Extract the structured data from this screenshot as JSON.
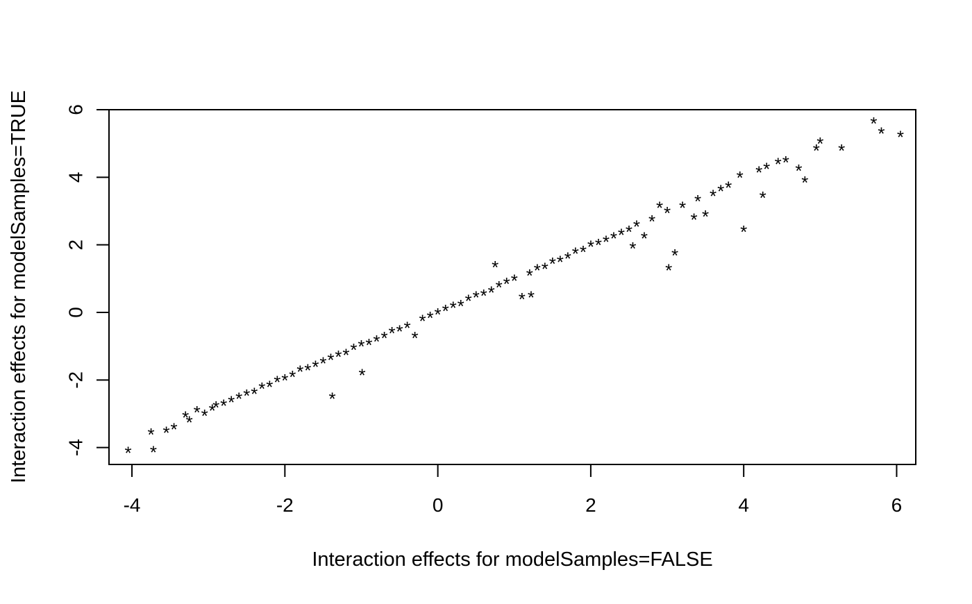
{
  "chart_data": {
    "type": "scatter",
    "title": "",
    "xlabel": "Interaction effects for modelSamples=FALSE",
    "ylabel": "Interaction effects for modelSamples=TRUE",
    "xlim": [
      -4.3,
      6.25
    ],
    "ylim": [
      -4.5,
      6.0
    ],
    "x_ticks": [
      -4,
      -2,
      0,
      2,
      4,
      6
    ],
    "y_ticks": [
      -4,
      -2,
      0,
      2,
      4,
      6
    ],
    "x_tick_labels": [
      "-4",
      "-2",
      "0",
      "2",
      "4",
      "6"
    ],
    "y_tick_labels": [
      "-4",
      "-2",
      "0",
      "2",
      "4",
      "6"
    ],
    "grid": false,
    "legend": "none",
    "marker": "*",
    "point_color": "#000000",
    "series": [
      {
        "values": [
          [
            -4.05,
            -4.1
          ],
          [
            -3.75,
            -3.55
          ],
          [
            -3.72,
            -4.08
          ],
          [
            -3.55,
            -3.5
          ],
          [
            -3.45,
            -3.4
          ],
          [
            -3.3,
            -3.05
          ],
          [
            -3.25,
            -3.2
          ],
          [
            -3.15,
            -2.9
          ],
          [
            -3.05,
            -3.0
          ],
          [
            -2.95,
            -2.85
          ],
          [
            -2.9,
            -2.75
          ],
          [
            -2.8,
            -2.7
          ],
          [
            -2.7,
            -2.6
          ],
          [
            -2.6,
            -2.5
          ],
          [
            -2.5,
            -2.4
          ],
          [
            -2.4,
            -2.35
          ],
          [
            -2.3,
            -2.2
          ],
          [
            -2.2,
            -2.15
          ],
          [
            -2.1,
            -2.0
          ],
          [
            -2.0,
            -1.95
          ],
          [
            -1.9,
            -1.85
          ],
          [
            -1.8,
            -1.7
          ],
          [
            -1.7,
            -1.65
          ],
          [
            -1.6,
            -1.55
          ],
          [
            -1.5,
            -1.45
          ],
          [
            -1.4,
            -1.35
          ],
          [
            -1.38,
            -2.5
          ],
          [
            -1.3,
            -1.25
          ],
          [
            -1.2,
            -1.2
          ],
          [
            -1.1,
            -1.05
          ],
          [
            -1.0,
            -0.95
          ],
          [
            -0.99,
            -1.8
          ],
          [
            -0.9,
            -0.9
          ],
          [
            -0.8,
            -0.8
          ],
          [
            -0.7,
            -0.7
          ],
          [
            -0.6,
            -0.55
          ],
          [
            -0.5,
            -0.5
          ],
          [
            -0.4,
            -0.4
          ],
          [
            -0.3,
            -0.7
          ],
          [
            -0.2,
            -0.2
          ],
          [
            -0.1,
            -0.1
          ],
          [
            0.0,
            0.0
          ],
          [
            0.1,
            0.1
          ],
          [
            0.2,
            0.2
          ],
          [
            0.3,
            0.25
          ],
          [
            0.4,
            0.4
          ],
          [
            0.5,
            0.5
          ],
          [
            0.6,
            0.55
          ],
          [
            0.7,
            0.65
          ],
          [
            0.75,
            1.4
          ],
          [
            0.8,
            0.8
          ],
          [
            0.9,
            0.9
          ],
          [
            1.0,
            1.0
          ],
          [
            1.1,
            0.45
          ],
          [
            1.2,
            1.15
          ],
          [
            1.22,
            0.5
          ],
          [
            1.3,
            1.3
          ],
          [
            1.4,
            1.35
          ],
          [
            1.5,
            1.5
          ],
          [
            1.6,
            1.55
          ],
          [
            1.7,
            1.65
          ],
          [
            1.8,
            1.8
          ],
          [
            1.9,
            1.85
          ],
          [
            2.0,
            2.0
          ],
          [
            2.1,
            2.05
          ],
          [
            2.2,
            2.15
          ],
          [
            2.3,
            2.25
          ],
          [
            2.4,
            2.35
          ],
          [
            2.5,
            2.45
          ],
          [
            2.55,
            1.95
          ],
          [
            2.6,
            2.6
          ],
          [
            2.7,
            2.25
          ],
          [
            2.8,
            2.75
          ],
          [
            2.9,
            3.15
          ],
          [
            3.0,
            3.0
          ],
          [
            3.02,
            1.3
          ],
          [
            3.1,
            1.75
          ],
          [
            3.2,
            3.15
          ],
          [
            3.35,
            2.8
          ],
          [
            3.4,
            3.35
          ],
          [
            3.5,
            2.9
          ],
          [
            3.6,
            3.5
          ],
          [
            3.7,
            3.65
          ],
          [
            3.8,
            3.75
          ],
          [
            3.95,
            4.05
          ],
          [
            4.0,
            2.45
          ],
          [
            4.2,
            4.2
          ],
          [
            4.25,
            3.45
          ],
          [
            4.3,
            4.3
          ],
          [
            4.45,
            4.45
          ],
          [
            4.55,
            4.5
          ],
          [
            4.72,
            4.25
          ],
          [
            4.8,
            3.9
          ],
          [
            4.95,
            4.85
          ],
          [
            5.0,
            5.05
          ],
          [
            5.28,
            4.85
          ],
          [
            5.7,
            5.65
          ],
          [
            5.8,
            5.35
          ],
          [
            6.05,
            5.25
          ]
        ]
      }
    ]
  }
}
